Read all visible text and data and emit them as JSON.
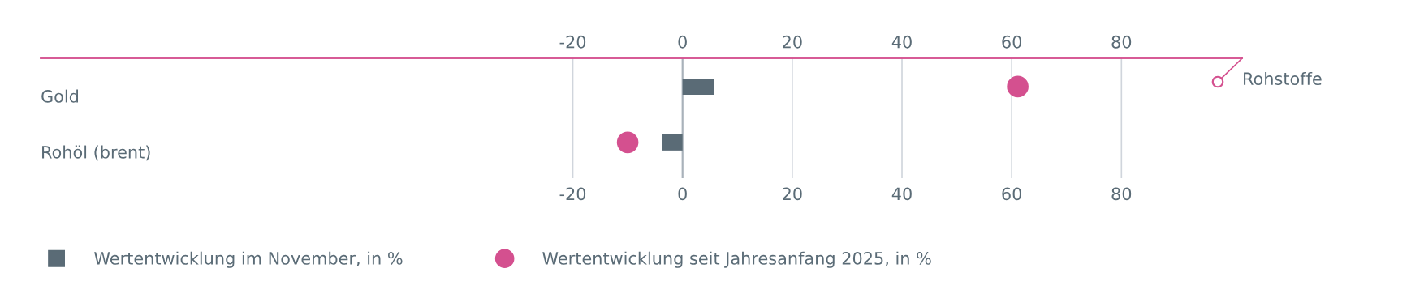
{
  "chart_data": {
    "type": "bar",
    "orientation": "horizontal",
    "title": "Rohstoffe",
    "categories": [
      "Gold",
      "Rohöl (brent)"
    ],
    "series": [
      {
        "name": "Wertentwicklung im November, in %",
        "color": "#5a6b76",
        "values": [
          5.8,
          -3.7
        ]
      },
      {
        "name": "Wertentwicklung seit Jahresanfang 2025, in %",
        "type": "scatter",
        "color": "#d4508f",
        "values": [
          61.1,
          -10.0
        ]
      }
    ],
    "xlim": [
      -117,
      102
    ],
    "xticks": [
      -20,
      0,
      20,
      40,
      60,
      80
    ],
    "x2lim": [
      -117,
      102
    ],
    "x2ticks": [
      -20,
      0,
      20,
      40,
      60,
      80
    ],
    "ref_lines": [
      {
        "axis": "x",
        "value": 0,
        "color": "#a9b2ba"
      }
    ],
    "grid": "x",
    "legend": "bottom left",
    "marker": "circle"
  }
}
